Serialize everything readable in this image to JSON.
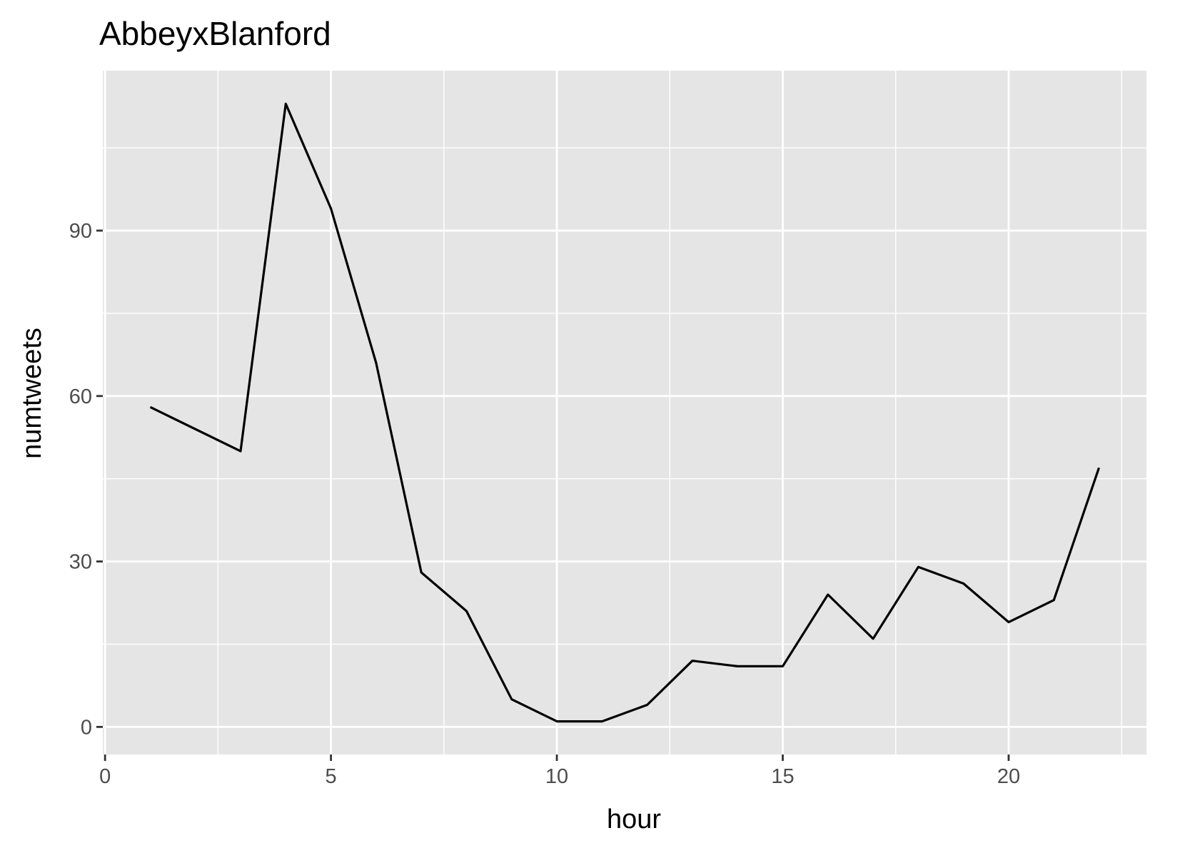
{
  "chart_data": {
    "type": "line",
    "title": "AbbeyxBlanford",
    "xlabel": "hour",
    "ylabel": "numtweets",
    "xlim": [
      -0.05,
      23.05
    ],
    "ylim": [
      -5,
      119
    ],
    "xticks": [
      0,
      5,
      10,
      15,
      20
    ],
    "yticks": [
      0,
      30,
      60,
      90
    ],
    "x_tick_labels": [
      "0",
      "5",
      "10",
      "15",
      "20"
    ],
    "y_tick_labels": [
      "0",
      "30",
      "60",
      "90"
    ],
    "grid": true,
    "legend": "none",
    "colors": {
      "panel": "#e5e5e5",
      "grid": "#ffffff",
      "line": "#000000",
      "tick": "#333333"
    },
    "series": [
      {
        "x": [
          1,
          3,
          4,
          5,
          6,
          7,
          8,
          9,
          10,
          11,
          12,
          13,
          14,
          15,
          16,
          17,
          18,
          19,
          20,
          21,
          22
        ],
        "values": [
          58,
          50,
          113,
          94,
          66,
          28,
          21,
          5,
          1,
          1,
          4,
          12,
          11,
          11,
          24,
          16,
          29,
          26,
          19,
          23,
          47
        ]
      }
    ]
  }
}
